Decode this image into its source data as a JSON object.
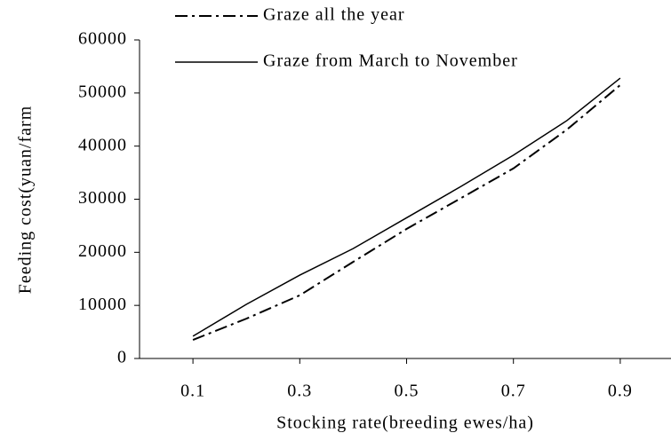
{
  "chart_data": {
    "type": "line",
    "x_label": "Stocking rate(breeding ewes/ha)",
    "y_label": "Feeding cost(yuan/farm",
    "x": [
      0.1,
      0.2,
      0.3,
      0.4,
      0.5,
      0.6,
      0.7,
      0.8,
      0.9
    ],
    "series": [
      {
        "name": "Graze all the year",
        "color": "#000000",
        "dash": "dashdot",
        "values": [
          3500,
          7500,
          11900,
          18200,
          24400,
          30100,
          35800,
          43100,
          51500
        ]
      },
      {
        "name": "Graze from March to November",
        "color": "#000000",
        "dash": "solid",
        "values": [
          4200,
          10200,
          15700,
          20700,
          26500,
          32300,
          38300,
          44800,
          52800
        ]
      }
    ],
    "xlim": [
      0,
      1
    ],
    "xticks": [
      0.1,
      0.3,
      0.5,
      0.7,
      0.9
    ],
    "ylim": [
      0,
      60000
    ],
    "yticks": [
      0,
      10000,
      20000,
      30000,
      40000,
      50000,
      60000
    ],
    "grid": false
  }
}
